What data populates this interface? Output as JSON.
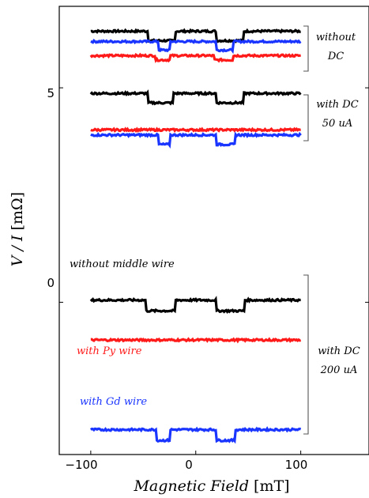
{
  "chart_data": {
    "type": "line",
    "xlabel": "Magnetic Field",
    "xunit": "[mT]",
    "ylabel": "V / I",
    "yunit": "[mΩ]",
    "xlim": [
      -130,
      165
    ],
    "ylim": [
      -3.55,
      6.9
    ],
    "x_ticks": [
      -100,
      0,
      100
    ],
    "x_tick_labels": [
      "−100",
      "0",
      "100"
    ],
    "y_ticks": [
      0,
      5
    ],
    "y_tick_labels": [
      "0",
      "5"
    ],
    "grid": false,
    "colors": {
      "black": "#000000",
      "blue": "#1a35ff",
      "red": "#ff1a1a"
    },
    "series": [
      {
        "color": "#000000",
        "baseline": 6.32,
        "dips": [
          {
            "from": -45,
            "to": -20,
            "depth": 0.22
          },
          {
            "from": 20,
            "to": 45,
            "depth": 0.22
          }
        ]
      },
      {
        "color": "#1a35ff",
        "baseline": 6.08,
        "dips": [
          {
            "from": -35,
            "to": -25,
            "depth": 0.2
          },
          {
            "from": 20,
            "to": 35,
            "depth": 0.2
          }
        ]
      },
      {
        "color": "#ff1a1a",
        "baseline": 5.75,
        "dips": [
          {
            "from": -38,
            "to": -25,
            "depth": 0.1
          },
          {
            "from": 18,
            "to": 35,
            "depth": 0.1
          }
        ]
      },
      {
        "color": "#000000",
        "baseline": 4.87,
        "dips": [
          {
            "from": -45,
            "to": -22,
            "depth": 0.22
          },
          {
            "from": 20,
            "to": 45,
            "depth": 0.22
          }
        ]
      },
      {
        "color": "#ff1a1a",
        "baseline": 4.02,
        "dips": []
      },
      {
        "color": "#1a35ff",
        "baseline": 3.9,
        "dips": [
          {
            "from": -35,
            "to": -25,
            "depth": 0.22
          },
          {
            "from": 20,
            "to": 37,
            "depth": 0.22
          }
        ]
      },
      {
        "color": "#000000",
        "baseline": 0.05,
        "dips": [
          {
            "from": -47,
            "to": -20,
            "depth": 0.25
          },
          {
            "from": 20,
            "to": 46,
            "depth": 0.25
          }
        ]
      },
      {
        "color": "#ff1a1a",
        "baseline": -0.88,
        "dips": []
      },
      {
        "color": "#1a35ff",
        "baseline": -2.97,
        "dips": [
          {
            "from": -37,
            "to": -25,
            "depth": 0.25
          },
          {
            "from": 20,
            "to": 37,
            "depth": 0.25
          }
        ]
      }
    ],
    "annotations": [
      {
        "text": "without",
        "color": "#000000"
      },
      {
        "text": "DC",
        "color": "#000000"
      },
      {
        "text": "with DC",
        "color": "#000000"
      },
      {
        "text": "50 uA",
        "color": "#000000"
      },
      {
        "text": "without middle wire",
        "color": "#000000"
      },
      {
        "text": "with Py wire",
        "color": "#ff1a1a"
      },
      {
        "text": "with Gd wire",
        "color": "#1a35ff"
      },
      {
        "text": "with DC",
        "color": "#000000"
      },
      {
        "text": "200 uA",
        "color": "#000000"
      }
    ]
  }
}
